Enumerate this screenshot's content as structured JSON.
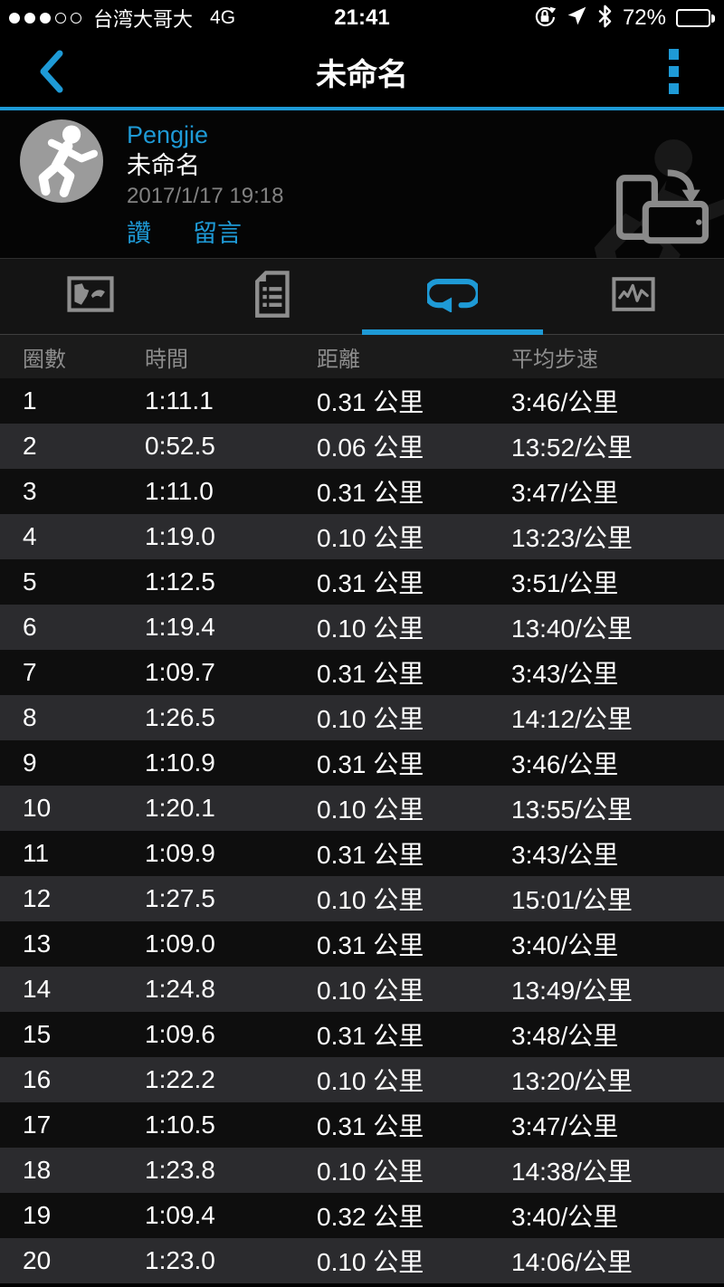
{
  "status_bar": {
    "carrier": "台湾大哥大",
    "network": "4G",
    "time": "21:41",
    "battery_percent": "72%",
    "signal_filled": 3,
    "signal_total": 5
  },
  "nav_bar": {
    "title": "未命名"
  },
  "activity_header": {
    "user_name": "Pengjie",
    "activity_title": "未命名",
    "datetime": "2017/1/17 19:18",
    "like_label": "讚",
    "comment_label": "留言"
  },
  "tabs": [
    {
      "id": "map",
      "active": false
    },
    {
      "id": "details",
      "active": false
    },
    {
      "id": "laps",
      "active": true
    },
    {
      "id": "charts",
      "active": false
    }
  ],
  "laps_table": {
    "columns": [
      "圈數",
      "時間",
      "距離",
      "平均步速"
    ],
    "rows": [
      [
        "1",
        "1:11.1",
        "0.31 公里",
        "3:46/公里"
      ],
      [
        "2",
        "0:52.5",
        "0.06 公里",
        "13:52/公里"
      ],
      [
        "3",
        "1:11.0",
        "0.31 公里",
        "3:47/公里"
      ],
      [
        "4",
        "1:19.0",
        "0.10 公里",
        "13:23/公里"
      ],
      [
        "5",
        "1:12.5",
        "0.31 公里",
        "3:51/公里"
      ],
      [
        "6",
        "1:19.4",
        "0.10 公里",
        "13:40/公里"
      ],
      [
        "7",
        "1:09.7",
        "0.31 公里",
        "3:43/公里"
      ],
      [
        "8",
        "1:26.5",
        "0.10 公里",
        "14:12/公里"
      ],
      [
        "9",
        "1:10.9",
        "0.31 公里",
        "3:46/公里"
      ],
      [
        "10",
        "1:20.1",
        "0.10 公里",
        "13:55/公里"
      ],
      [
        "11",
        "1:09.9",
        "0.31 公里",
        "3:43/公里"
      ],
      [
        "12",
        "1:27.5",
        "0.10 公里",
        "15:01/公里"
      ],
      [
        "13",
        "1:09.0",
        "0.31 公里",
        "3:40/公里"
      ],
      [
        "14",
        "1:24.8",
        "0.10 公里",
        "13:49/公里"
      ],
      [
        "15",
        "1:09.6",
        "0.31 公里",
        "3:48/公里"
      ],
      [
        "16",
        "1:22.2",
        "0.10 公里",
        "13:20/公里"
      ],
      [
        "17",
        "1:10.5",
        "0.31 公里",
        "3:47/公里"
      ],
      [
        "18",
        "1:23.8",
        "0.10 公里",
        "14:38/公里"
      ],
      [
        "19",
        "1:09.4",
        "0.32 公里",
        "3:40/公里"
      ],
      [
        "20",
        "1:23.0",
        "0.10 公里",
        "14:06/公里"
      ]
    ]
  },
  "colors": {
    "accent_blue": "#1e9ad6",
    "row_dark": "#0e0e0e",
    "row_light": "#2b2b2e",
    "table_header_bg": "#1b1b1b",
    "muted_text": "#8d8d8d"
  }
}
